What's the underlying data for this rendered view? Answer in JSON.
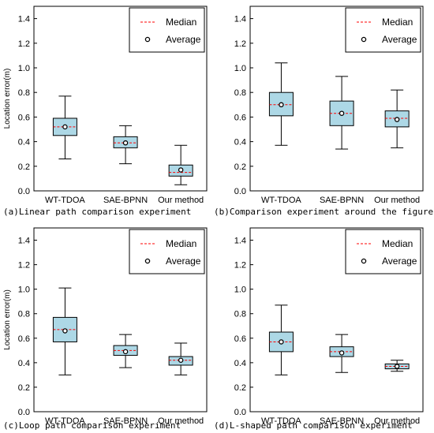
{
  "style": {
    "box_fill": "#add8e6",
    "median_color": "#ff0000",
    "average_marker_color": "#000000"
  },
  "legend": {
    "median_label": "Median",
    "average_label": "Average",
    "position": "top-right"
  },
  "chart_data": [
    {
      "type": "box",
      "caption": "(a)Linear path comparison experiment",
      "ylabel": "Location error(m)",
      "ylim": [
        0,
        1.5
      ],
      "yticks": [
        "0.0",
        "0.2",
        "0.4",
        "0.6",
        "0.8",
        "1.0",
        "1.2",
        "1.4"
      ],
      "categories": [
        "WT-TDOA",
        "SAE-BPNN",
        "Our method"
      ],
      "boxes": [
        {
          "min": 0.26,
          "q1": 0.45,
          "median": 0.52,
          "q3": 0.59,
          "max": 0.77,
          "mean": 0.52
        },
        {
          "min": 0.22,
          "q1": 0.35,
          "median": 0.39,
          "q3": 0.44,
          "max": 0.53,
          "mean": 0.39
        },
        {
          "min": 0.05,
          "q1": 0.12,
          "median": 0.15,
          "q3": 0.21,
          "max": 0.37,
          "mean": 0.17
        }
      ]
    },
    {
      "type": "box",
      "caption": "(b)Comparison experiment around the figure eight",
      "ylabel": "",
      "ylim": [
        0,
        1.5
      ],
      "yticks": [
        "0.0",
        "0.2",
        "0.4",
        "0.6",
        "0.8",
        "1.0",
        "1.2",
        "1.4"
      ],
      "categories": [
        "WT-TDOA",
        "SAE-BPNN",
        "Our method"
      ],
      "boxes": [
        {
          "min": 0.37,
          "q1": 0.61,
          "median": 0.7,
          "q3": 0.8,
          "max": 1.04,
          "mean": 0.7
        },
        {
          "min": 0.34,
          "q1": 0.53,
          "median": 0.63,
          "q3": 0.73,
          "max": 0.93,
          "mean": 0.63
        },
        {
          "min": 0.35,
          "q1": 0.52,
          "median": 0.59,
          "q3": 0.65,
          "max": 0.82,
          "mean": 0.58
        }
      ]
    },
    {
      "type": "box",
      "caption": "(c)Loop path comparison experiment",
      "ylabel": "Location error(m)",
      "ylim": [
        0,
        1.5
      ],
      "yticks": [
        "0.0",
        "0.2",
        "0.4",
        "0.6",
        "0.8",
        "1.0",
        "1.2",
        "1.4"
      ],
      "categories": [
        "WT-TDOA",
        "SAE-BPNN",
        "Our method"
      ],
      "boxes": [
        {
          "min": 0.3,
          "q1": 0.57,
          "median": 0.67,
          "q3": 0.77,
          "max": 1.01,
          "mean": 0.66
        },
        {
          "min": 0.36,
          "q1": 0.46,
          "median": 0.5,
          "q3": 0.54,
          "max": 0.63,
          "mean": 0.49
        },
        {
          "min": 0.3,
          "q1": 0.38,
          "median": 0.42,
          "q3": 0.45,
          "max": 0.56,
          "mean": 0.42
        }
      ]
    },
    {
      "type": "box",
      "caption": "(d)L-shaped path comparison experiment",
      "ylabel": "",
      "ylim": [
        0,
        1.5
      ],
      "yticks": [
        "0.0",
        "0.2",
        "0.4",
        "0.6",
        "0.8",
        "1.0",
        "1.2",
        "1.4"
      ],
      "categories": [
        "WT-TDOA",
        "SAE-BPNN",
        "Our method"
      ],
      "boxes": [
        {
          "min": 0.3,
          "q1": 0.49,
          "median": 0.57,
          "q3": 0.65,
          "max": 0.87,
          "mean": 0.57
        },
        {
          "min": 0.32,
          "q1": 0.45,
          "median": 0.49,
          "q3": 0.53,
          "max": 0.63,
          "mean": 0.48
        },
        {
          "min": 0.33,
          "q1": 0.35,
          "median": 0.37,
          "q3": 0.39,
          "max": 0.42,
          "mean": 0.37
        }
      ]
    }
  ]
}
